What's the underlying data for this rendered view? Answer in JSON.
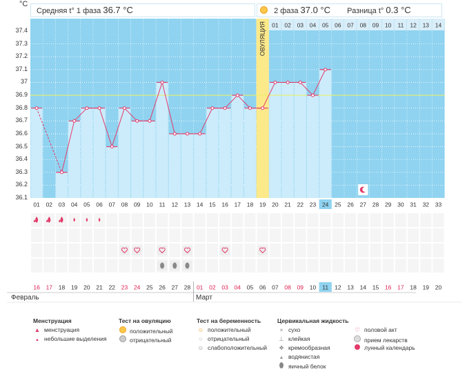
{
  "header": {
    "unit": "°C",
    "phase1_label": "Средняя t° 1 фаза",
    "phase1_value": "36.7 °C",
    "phase2_label": "2 фаза",
    "phase2_value": "37.0 °C",
    "diff_label": "Разница t°",
    "diff_value": "0.3 °C"
  },
  "chart_data": {
    "type": "line",
    "title": "",
    "ylabel": "°C",
    "ylim": [
      36.1,
      37.4
    ],
    "yticks": [
      "37.4",
      "37.3",
      "37.2",
      "37.1",
      "37",
      "36.9",
      "36.8",
      "36.7",
      "36.6",
      "36.5",
      "36.4",
      "36.3",
      "36.2",
      "36.1"
    ],
    "x": [
      "01",
      "02",
      "03",
      "04",
      "05",
      "06",
      "07",
      "08",
      "09",
      "10",
      "11",
      "12",
      "13",
      "14",
      "15",
      "16",
      "17",
      "18",
      "19",
      "20",
      "21",
      "22",
      "23",
      "24",
      "25",
      "26",
      "27",
      "28",
      "29",
      "30",
      "31",
      "32",
      "33"
    ],
    "temperatures": [
      36.8,
      null,
      36.3,
      36.7,
      36.8,
      36.8,
      36.5,
      36.8,
      36.7,
      36.7,
      37.0,
      36.6,
      36.6,
      36.6,
      36.8,
      36.8,
      36.9,
      36.8,
      36.8,
      37.0,
      37.0,
      37.0,
      36.9,
      37.1,
      null,
      null,
      null,
      null,
      null,
      null,
      null,
      null,
      null
    ],
    "coverline": 36.9,
    "ovulation_day": 19,
    "ovulation_label": "ОВУЛЯЦИЯ",
    "phase2_day_labels": [
      "01",
      "02",
      "03",
      "04",
      "05",
      "06",
      "07",
      "08",
      "09",
      "10",
      "11",
      "12",
      "13",
      "14"
    ],
    "current_day": 24,
    "moon_day": 27
  },
  "symbols": {
    "menstruation": [
      "heavy",
      "heavy",
      "heavy",
      "light",
      "light",
      "light"
    ],
    "sex_days": [
      8,
      9,
      11,
      13,
      16,
      19
    ],
    "egg_white_days": [
      11,
      12,
      13
    ]
  },
  "calendar": {
    "dates": [
      "16",
      "17",
      "18",
      "19",
      "20",
      "21",
      "22",
      "23",
      "24",
      "25",
      "26",
      "27",
      "28",
      "01",
      "02",
      "03",
      "04",
      "05",
      "06",
      "07",
      "08",
      "09",
      "10",
      "11",
      "12",
      "13",
      "14",
      "15",
      "16",
      "17",
      "18",
      "19",
      "20"
    ],
    "red_days": [
      1,
      2,
      8,
      9,
      14,
      15,
      16,
      17,
      21,
      22,
      29,
      30
    ],
    "today_index": 24,
    "month1": "Февраль",
    "month2": "Март"
  },
  "legend": {
    "col1_title": "Менструация",
    "col1": [
      "менструация",
      "небольшие выделения"
    ],
    "col2_title": "Тест на овуляцию",
    "col2": [
      "положительный",
      "отрицательный"
    ],
    "col3_title": "Тест на беременность",
    "col3": [
      "положительный",
      "отрицательный",
      "слабоположительный"
    ],
    "col4_title": "Цервикальная жидкость",
    "col4": [
      "сухо",
      "клейкая",
      "кремообразная",
      "водянистая",
      "яичный белок"
    ],
    "col5": [
      "половой акт",
      "прием лекарств",
      "лунный календарь"
    ]
  },
  "colors": {
    "sky": "#8fd3f0",
    "bar": "#ccecfb",
    "line": "#e33a6a",
    "ovulation": "#fce98a",
    "today": "#8fd3f0",
    "red_date": "#e0204f"
  }
}
